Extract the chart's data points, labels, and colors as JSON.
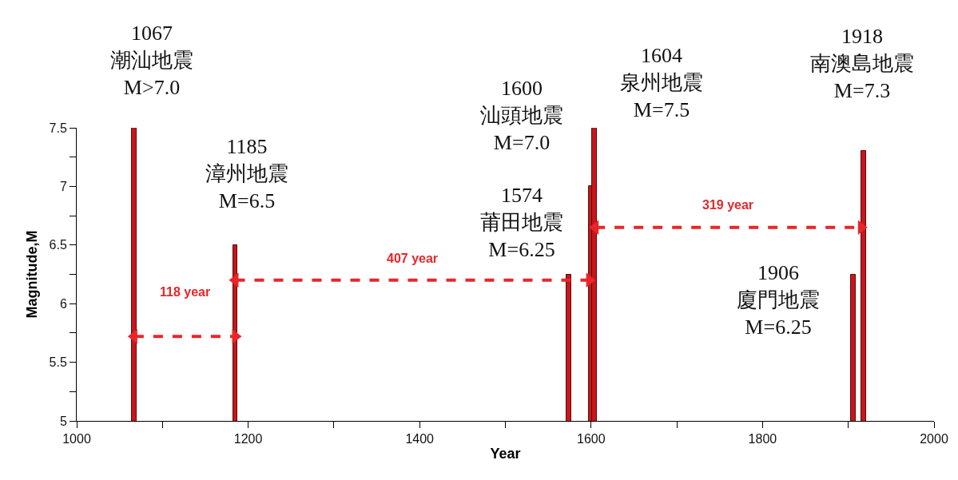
{
  "chart_data": {
    "type": "bar",
    "xlabel": "Year",
    "ylabel": "Magnitude,M",
    "xlim": [
      1000,
      2000
    ],
    "ylim": [
      5,
      7.5
    ],
    "xticks": [
      1000,
      {
        "value": 1100,
        "label": null
      },
      1200,
      {
        "value": 1300,
        "label": null
      },
      1400,
      {
        "value": 1500,
        "label": null
      },
      1600,
      {
        "value": 1700,
        "label": null
      },
      1800,
      {
        "value": 1900,
        "label": null
      },
      2000
    ],
    "yticks": [
      5,
      {
        "value": 5.25,
        "label": null
      },
      5.5,
      {
        "value": 5.75,
        "label": null
      },
      6,
      {
        "value": 6.25,
        "label": null
      },
      6.5,
      {
        "value": 6.75,
        "label": null
      },
      7,
      {
        "value": 7.25,
        "label": null
      },
      7.5
    ],
    "series": [
      {
        "color": "#c8161d",
        "x": [
          1067,
          1185,
          1574,
          1600,
          1604,
          1906,
          1918
        ],
        "values": [
          7.5,
          6.5,
          6.25,
          7.0,
          7.5,
          6.25,
          7.3
        ]
      },
      {
        "type": "line",
        "color": "#e8262a",
        "line_style": "dashed",
        "marker": "triangle",
        "x": [
          1067,
          1185
        ],
        "values": [
          5.72,
          5.72
        ]
      },
      {
        "type": "line",
        "color": "#e8262a",
        "line_style": "dashed",
        "marker": "triangle",
        "x": [
          1185,
          1598
        ],
        "values": [
          6.2,
          6.2
        ]
      },
      {
        "type": "line",
        "color": "#e8262a",
        "line_style": "dashed",
        "marker": "triangle",
        "x": [
          1605,
          1915
        ],
        "values": [
          6.65,
          6.65
        ]
      }
    ],
    "annotations": [
      {
        "text": "1067\n潮汕地震\nM>7.0",
        "x": 1067,
        "y": 7.5
      },
      {
        "text": "1185\n漳州地震\nM=6.5",
        "x": 1185,
        "y": 6.5
      },
      {
        "text": "1574\n莆田地震\nM=6.25",
        "x": 1574,
        "y": 6.25
      },
      {
        "text": "1600\n汕頭地震\nM=7.0",
        "x": 1600,
        "y": 7.0
      },
      {
        "text": "1604\n泉州地震\nM=7.5",
        "x": 1604,
        "y": 7.5
      },
      {
        "text": "1906\n廈門地震\nM=6.25",
        "x": 1906,
        "y": 6.25
      },
      {
        "text": "1918\n南澳島地震\nM=7.3",
        "x": 1918,
        "y": 7.3
      },
      "118 year",
      "407 year",
      "319 year"
    ]
  }
}
